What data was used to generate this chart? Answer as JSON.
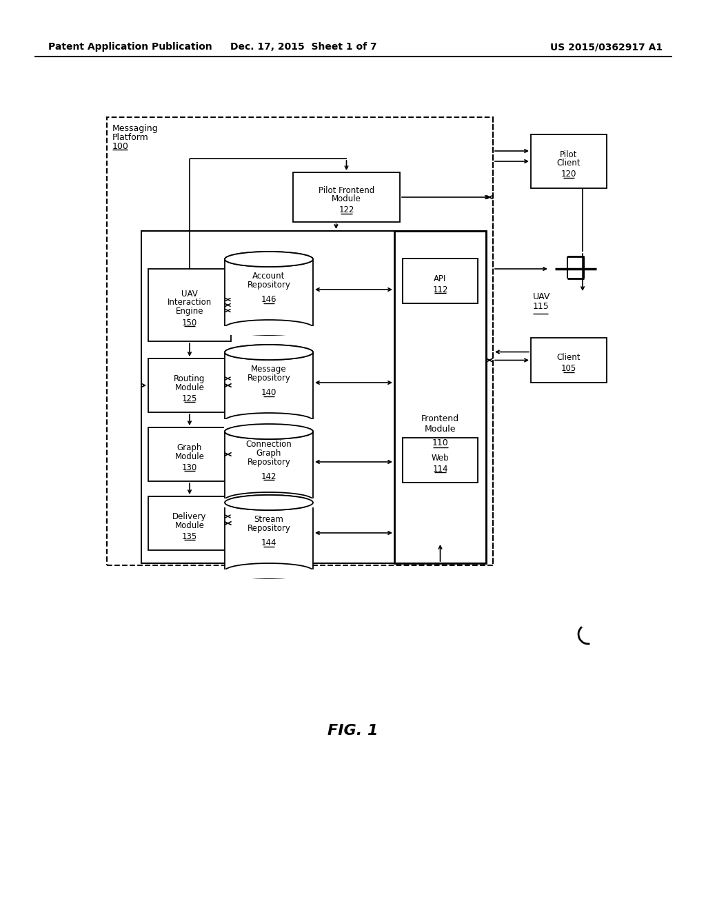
{
  "bg_color": "#ffffff",
  "header_left": "Patent Application Publication",
  "header_mid": "Dec. 17, 2015  Sheet 1 of 7",
  "header_right": "US 2015/0362917 A1",
  "fig_label": "FIG. 1"
}
